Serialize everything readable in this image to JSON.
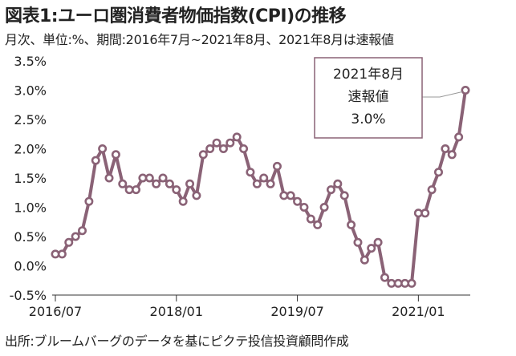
{
  "header": {
    "title": "図表1:ユーロ圏消費者物価指数(CPI)の推移",
    "subtitle": "月次、単位:%、期間:2016年7月~2021年8月、2021年8月は速報値"
  },
  "footer": {
    "source": "出所:ブルームバーグのデータを基にピクテ投信投資顧問作成"
  },
  "annotation": {
    "lines": [
      "2021年8月",
      "速報値",
      "3.0%"
    ]
  },
  "colors": {
    "series": "#8a6276",
    "marker_fill": "#ffffff",
    "box_border": "#8a6276",
    "callout_line": "#999999",
    "axis": "#333333"
  },
  "chart_data": {
    "type": "line",
    "title": "図表1:ユーロ圏消費者物価指数(CPI)の推移",
    "ylim": [
      -0.5,
      3.5
    ],
    "yticks": [
      -0.5,
      0.0,
      0.5,
      1.0,
      1.5,
      2.0,
      2.5,
      3.0,
      3.5
    ],
    "ytick_labels": [
      "-0.5%",
      "0.0%",
      "0.5%",
      "1.0%",
      "1.5%",
      "2.0%",
      "2.5%",
      "3.0%",
      "3.5%"
    ],
    "xtick_labels": [
      "2016/07",
      "2018/01",
      "2019/07",
      "2021/01"
    ],
    "xtick_dates": [
      "2016-07",
      "2018-01",
      "2019-07",
      "2021-01"
    ],
    "grid": false,
    "series": [
      {
        "x": [
          "2016-07",
          "2016-08",
          "2016-09",
          "2016-10",
          "2016-11",
          "2016-12",
          "2017-01",
          "2017-02",
          "2017-03",
          "2017-04",
          "2017-05",
          "2017-06",
          "2017-07",
          "2017-08",
          "2017-09",
          "2017-10",
          "2017-11",
          "2017-12",
          "2018-01",
          "2018-02",
          "2018-03",
          "2018-04",
          "2018-05",
          "2018-06",
          "2018-07",
          "2018-08",
          "2018-09",
          "2018-10",
          "2018-11",
          "2018-12",
          "2019-01",
          "2019-02",
          "2019-03",
          "2019-04",
          "2019-05",
          "2019-06",
          "2019-07",
          "2019-08",
          "2019-09",
          "2019-10",
          "2019-11",
          "2019-12",
          "2020-01",
          "2020-02",
          "2020-03",
          "2020-04",
          "2020-05",
          "2020-06",
          "2020-07",
          "2020-08",
          "2020-09",
          "2020-10",
          "2020-11",
          "2020-12",
          "2021-01",
          "2021-02",
          "2021-03",
          "2021-04",
          "2021-05",
          "2021-06",
          "2021-07",
          "2021-08"
        ],
        "values": [
          0.2,
          0.2,
          0.4,
          0.5,
          0.6,
          1.1,
          1.8,
          2.0,
          1.5,
          1.9,
          1.4,
          1.3,
          1.3,
          1.5,
          1.5,
          1.4,
          1.5,
          1.4,
          1.3,
          1.1,
          1.4,
          1.2,
          1.9,
          2.0,
          2.1,
          2.0,
          2.1,
          2.2,
          2.0,
          1.6,
          1.4,
          1.5,
          1.4,
          1.7,
          1.2,
          1.2,
          1.1,
          1.0,
          0.8,
          0.7,
          1.0,
          1.3,
          1.4,
          1.2,
          0.7,
          0.4,
          0.1,
          0.3,
          0.4,
          -0.2,
          -0.3,
          -0.3,
          -0.3,
          -0.3,
          0.9,
          0.9,
          1.3,
          1.6,
          2.0,
          1.9,
          2.2,
          3.0
        ]
      }
    ]
  }
}
